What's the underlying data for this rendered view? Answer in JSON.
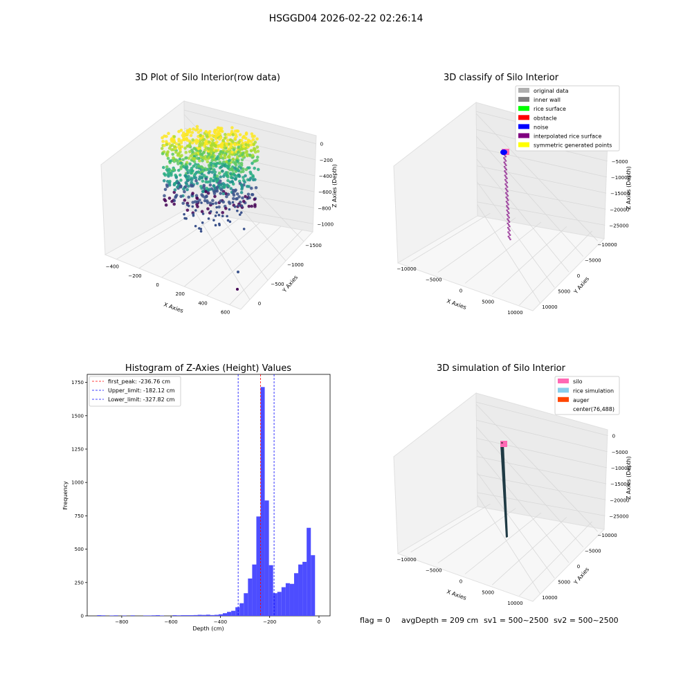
{
  "suptitle": "HSGGD04 2026-02-22 02:26:14",
  "chart_data": [
    {
      "type": "scatter",
      "projection": "3d",
      "title": "3D Plot of Silo Interior(row data)",
      "xlabel": "X Axies",
      "ylabel": "Y Axies",
      "zlabel": "Z Axies (Depth)",
      "x_ticks": [
        "−400",
        "−200",
        "0",
        "200",
        "400",
        "600"
      ],
      "y_ticks": [
        "0",
        "−500",
        "−1000",
        "−1500"
      ],
      "z_ticks": [
        "0",
        "−200",
        "−400",
        "−600",
        "−800",
        "−1000"
      ],
      "xlim": [
        -500,
        700
      ],
      "ylim": [
        -1800,
        200
      ],
      "zlim": [
        -1100,
        50
      ],
      "colormap": "viridis",
      "note_points": "dense dome of points from about z=0 to z=-600, sparse points down to about -1000"
    },
    {
      "type": "scatter",
      "projection": "3d",
      "title": "3D classify of Silo Interior",
      "zlabel": "Z Axies (Depth)",
      "xlabel": "X Axies",
      "ylabel": "Y Axies",
      "x_ticks": [
        "−10000",
        "−5000",
        "0",
        "5000",
        "10000"
      ],
      "y_ticks": [
        "10000",
        "5000",
        "0",
        "−5000",
        "−10000"
      ],
      "z_ticks": [
        "0",
        "−5000",
        "−10000",
        "−15000",
        "−20000",
        "−25000"
      ],
      "legend": [
        {
          "label": "original data",
          "color": "#b0b0b0"
        },
        {
          "label": "inner wall",
          "color": "#808080"
        },
        {
          "label": "rice surface",
          "color": "#00ff00"
        },
        {
          "label": "obstacle",
          "color": "#ff0000"
        },
        {
          "label": "noise",
          "color": "#0000ff"
        },
        {
          "label": "interpolated rice surface",
          "color": "#800080"
        },
        {
          "label": "symmetric generated points",
          "color": "#ffff00"
        }
      ],
      "legend_loc": "top-right"
    },
    {
      "type": "bar",
      "title": "Histogram of Z-Axies (Height) Values",
      "xlabel": "Depth (cm)",
      "ylabel": "Frequency",
      "xlim": [
        -940,
        45
      ],
      "ylim": [
        0,
        1810
      ],
      "x_ticks": [
        -800,
        -600,
        -400,
        -200,
        0
      ],
      "x_tick_labels": [
        "−800",
        "−600",
        "−400",
        "−200",
        "0"
      ],
      "y_ticks": [
        0,
        250,
        500,
        750,
        1000,
        1250,
        1500,
        1750
      ],
      "y_tick_labels": [
        "0",
        "250",
        "500",
        "750",
        "1000",
        "1250",
        "1500",
        "1750"
      ],
      "bin_width": 17,
      "bins": [
        [
          -900,
          5
        ],
        [
          -883,
          4
        ],
        [
          -849,
          3
        ],
        [
          -832,
          4
        ],
        [
          -798,
          3
        ],
        [
          -764,
          4
        ],
        [
          -713,
          3
        ],
        [
          -696,
          3
        ],
        [
          -679,
          4
        ],
        [
          -662,
          5
        ],
        [
          -645,
          3
        ],
        [
          -594,
          5
        ],
        [
          -577,
          4
        ],
        [
          -560,
          5
        ],
        [
          -543,
          5
        ],
        [
          -526,
          5
        ],
        [
          -509,
          6
        ],
        [
          -492,
          8
        ],
        [
          -475,
          7
        ],
        [
          -458,
          9
        ],
        [
          -441,
          6
        ],
        [
          -424,
          8
        ],
        [
          -407,
          12
        ],
        [
          -390,
          20
        ],
        [
          -373,
          30
        ],
        [
          -356,
          38
        ],
        [
          -339,
          65
        ],
        [
          -322,
          95
        ],
        [
          -305,
          170
        ],
        [
          -288,
          280
        ],
        [
          -271,
          385
        ],
        [
          -254,
          745
        ],
        [
          -237,
          1715
        ],
        [
          -220,
          865
        ],
        [
          -203,
          380
        ],
        [
          -186,
          170
        ],
        [
          -169,
          180
        ],
        [
          -152,
          215
        ],
        [
          -135,
          245
        ],
        [
          -118,
          240
        ],
        [
          -101,
          320
        ],
        [
          -84,
          385
        ],
        [
          -67,
          405
        ],
        [
          -50,
          660
        ],
        [
          -33,
          455
        ]
      ],
      "bar_color": "#4d4dff",
      "vlines": [
        {
          "label": "first_peak: -236.76 cm",
          "x": -236.76,
          "color": "#ff0000"
        },
        {
          "label": "Upper_limit: -182.12 cm",
          "x": -182.12,
          "color": "#0000ff"
        },
        {
          "label": "Lower_limit: -327.82 cm",
          "x": -327.82,
          "color": "#0000ff"
        }
      ],
      "legend_loc": "top-left"
    },
    {
      "type": "surface",
      "projection": "3d",
      "title": "3D simulation of Silo Interior",
      "xlabel": "X Axies",
      "ylabel": "Y Axies",
      "zlabel": "Z Axies (Depth)",
      "x_ticks": [
        "−10000",
        "−5000",
        "0",
        "5000",
        "10000"
      ],
      "y_ticks": [
        "10000",
        "5000",
        "0",
        "−5000",
        "−10000"
      ],
      "z_ticks": [
        "0",
        "−5000",
        "−10000",
        "−15000",
        "−20000",
        "−25000"
      ],
      "legend": [
        {
          "label": "silo",
          "color": "#ff69b4"
        },
        {
          "label": "rice simulation",
          "color": "#87ceeb"
        },
        {
          "label": "auger",
          "color": "#ff4500"
        },
        {
          "label": "center(76,488)",
          "color": ""
        }
      ],
      "legend_loc": "top-right"
    }
  ],
  "status": {
    "flag": "flag = 0",
    "avg_depth": "avgDepth = 209 cm",
    "sv1": "sv1 = 500~2500",
    "sv2": "sv2 = 500~2500"
  }
}
